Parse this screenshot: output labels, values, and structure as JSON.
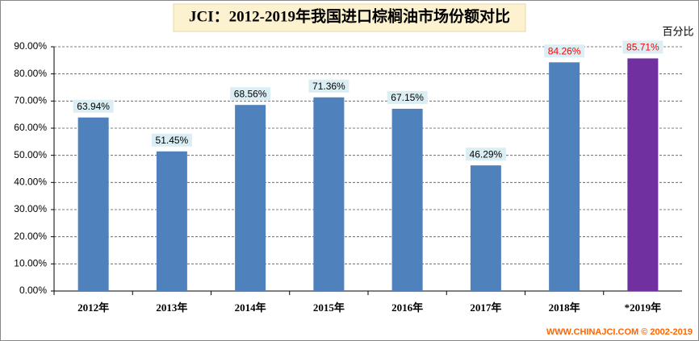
{
  "chart_data": {
    "type": "bar",
    "title": "JCI：2012-2019年我国进口棕榈油市场份额对比",
    "y_unit": "百分比",
    "footer": "WWW.CHINAJCI.COM © 2002-2019",
    "categories": [
      "2012年",
      "2013年",
      "2014年",
      "2015年",
      "2016年",
      "2017年",
      "2018年",
      "*2019年"
    ],
    "values": [
      63.94,
      51.45,
      68.56,
      71.36,
      67.15,
      46.29,
      84.26,
      85.71
    ],
    "value_labels": [
      "63.94%",
      "51.45%",
      "68.56%",
      "71.36%",
      "67.15%",
      "46.29%",
      "84.26%",
      "85.71%"
    ],
    "colors": [
      "#4f81bd",
      "#4f81bd",
      "#4f81bd",
      "#4f81bd",
      "#4f81bd",
      "#4f81bd",
      "#4f81bd",
      "#7030a0"
    ],
    "label_colors": [
      "#000000",
      "#000000",
      "#000000",
      "#000000",
      "#000000",
      "#000000",
      "#ff0000",
      "#ff0000"
    ],
    "ylim": [
      0,
      90
    ],
    "yticks": [
      {
        "value": 0,
        "label": "0.00%"
      },
      {
        "value": 10,
        "label": "10.00%"
      },
      {
        "value": 20,
        "label": "20.00%"
      },
      {
        "value": 30,
        "label": "30.00%"
      },
      {
        "value": 40,
        "label": "40.00%"
      },
      {
        "value": 50,
        "label": "50.00%"
      },
      {
        "value": 60,
        "label": "60.00%"
      },
      {
        "value": 70,
        "label": "70.00%"
      },
      {
        "value": 80,
        "label": "80.00%"
      },
      {
        "value": 90,
        "label": "90.00%"
      }
    ],
    "grid": true
  }
}
